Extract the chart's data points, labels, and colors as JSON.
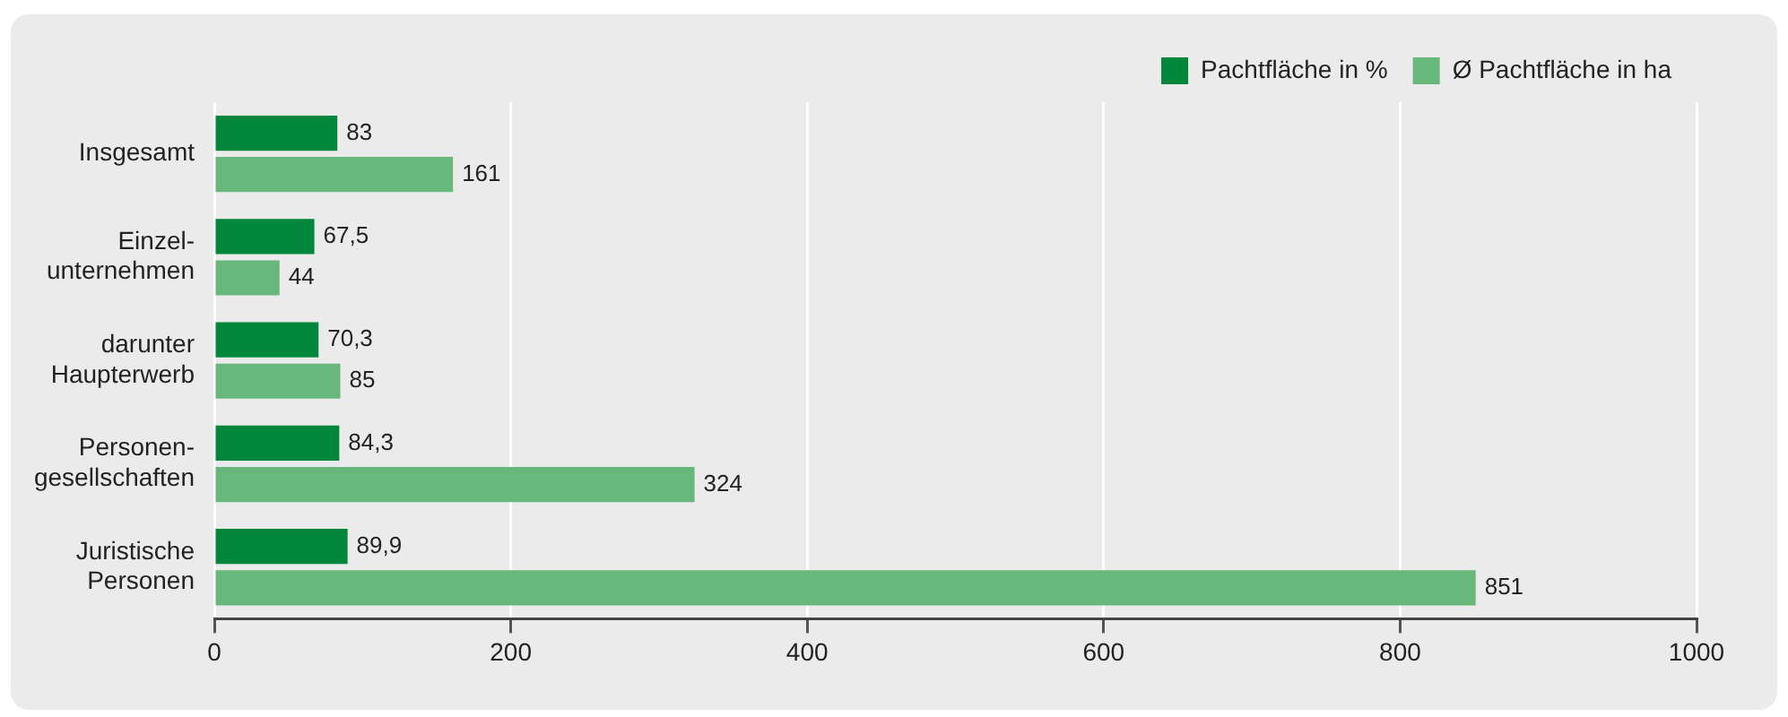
{
  "chart_data": {
    "type": "bar",
    "orientation": "horizontal",
    "categories": [
      "Insgesamt",
      "Einzel-\nunternehmen",
      "darunter\nHaupterwerb",
      "Personen-\ngesellschaften",
      "Juristische\nPersonen"
    ],
    "series": [
      {
        "name": "Pachtfläche in %",
        "color": "#00873c",
        "values": [
          83,
          67.5,
          70.3,
          84.3,
          89.9
        ],
        "value_labels": [
          "83",
          "67,5",
          "70,3",
          "84,3",
          "89,9"
        ]
      },
      {
        "name": "Ø Pachtfläche in ha",
        "color": "#68b77b",
        "values": [
          161,
          44,
          85,
          324,
          851
        ],
        "value_labels": [
          "161",
          "44",
          "85",
          "324",
          "851"
        ]
      }
    ],
    "xlim": [
      0,
      1000
    ],
    "xticks": [
      0,
      200,
      400,
      600,
      800,
      1000
    ],
    "grid": "x",
    "legend": "top right"
  }
}
